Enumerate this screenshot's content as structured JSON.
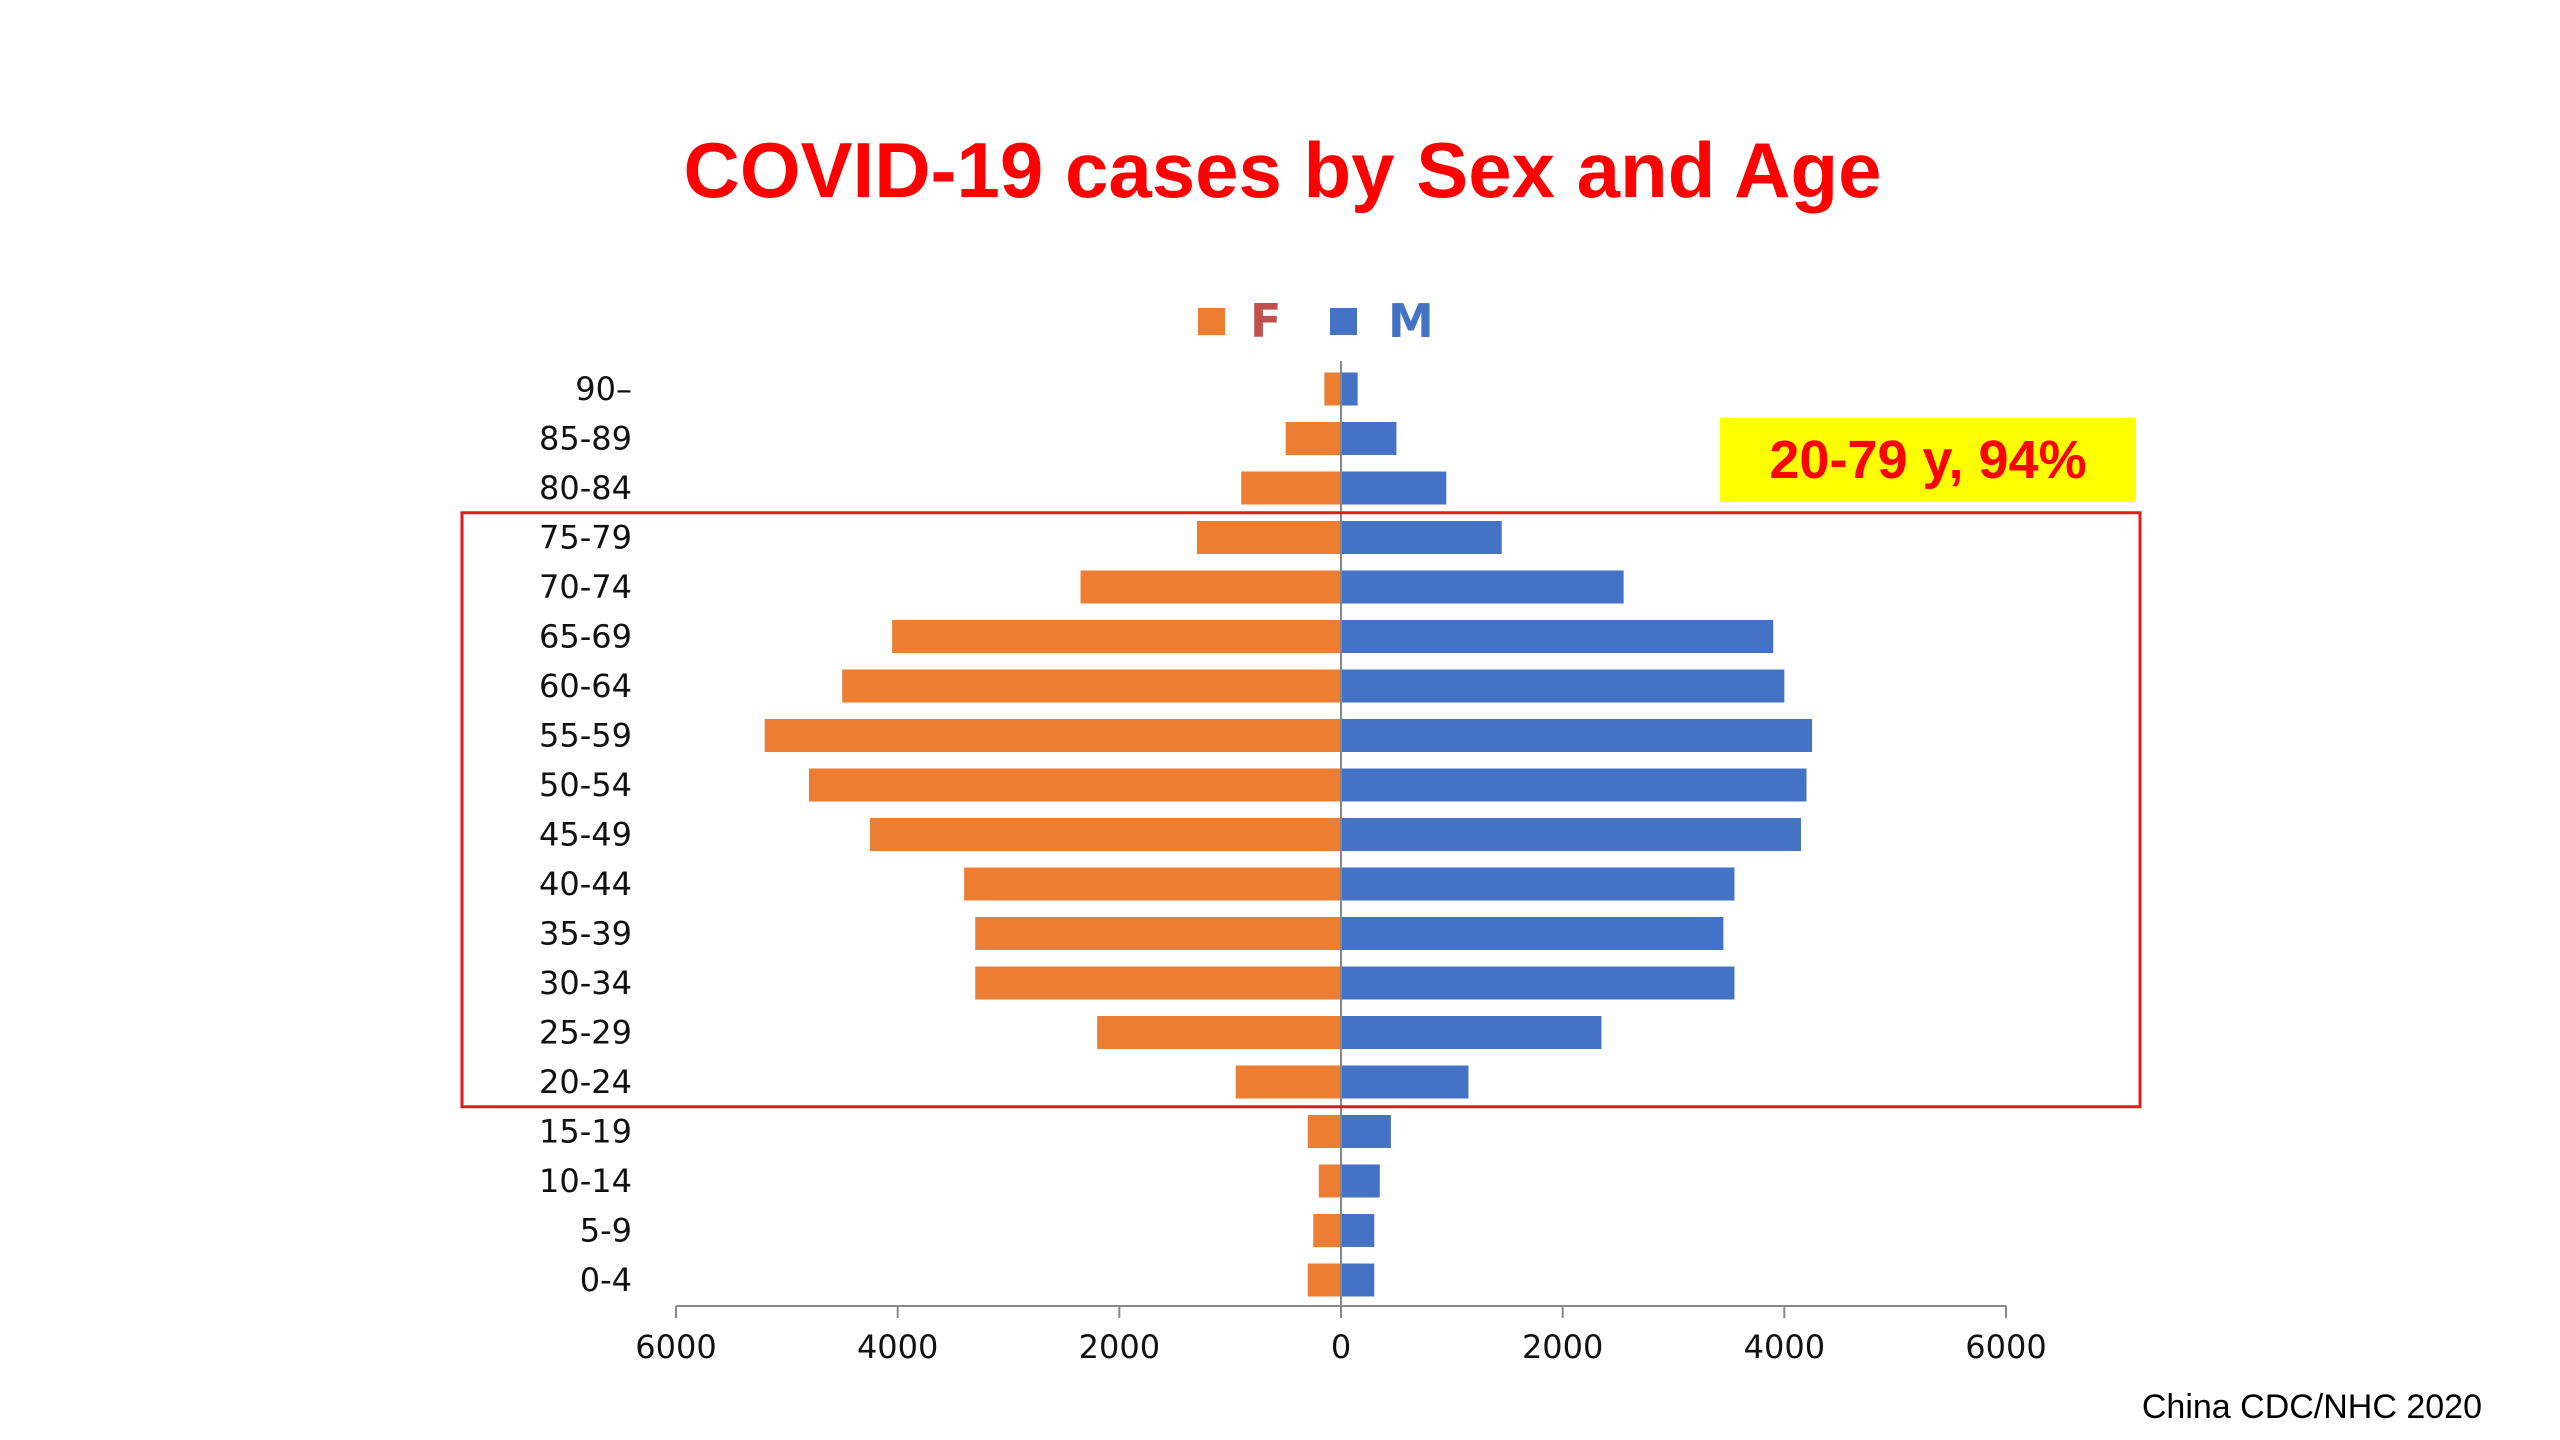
{
  "title": "COVID-19 cases by Sex and Age",
  "source": "China CDC/NHC  2020",
  "callout": "20-79 y, 94%",
  "colors": {
    "female": "#ed7d31",
    "male": "#4472c4",
    "female_label": "#c0504d",
    "highlight_box": "#e41a1c",
    "title": "#ff0000"
  },
  "chart_data": {
    "type": "bar",
    "orientation": "horizontal-population-pyramid",
    "categories": [
      "90–",
      "85-89",
      "80-84",
      "75-79",
      "70-74",
      "65-69",
      "60-64",
      "55-59",
      "50-54",
      "45-49",
      "40-44",
      "35-39",
      "30-34",
      "25-29",
      "20-24",
      "15-19",
      "10-14",
      "5-9",
      "0-4"
    ],
    "series": [
      {
        "name": "F",
        "values": [
          150,
          500,
          900,
          1300,
          2350,
          4050,
          4500,
          5200,
          4800,
          4250,
          3400,
          3300,
          3300,
          2200,
          950,
          300,
          200,
          250,
          300
        ]
      },
      {
        "name": "M",
        "values": [
          150,
          500,
          950,
          1450,
          2550,
          3900,
          4000,
          4250,
          4200,
          4150,
          3550,
          3450,
          3550,
          2350,
          1150,
          450,
          350,
          300,
          300
        ]
      }
    ],
    "xticks": [
      "6000",
      "4000",
      "2000",
      "0",
      "2000",
      "4000",
      "6000"
    ],
    "xlim": [
      -6000,
      6000
    ],
    "highlight_range": [
      "75-79",
      "20-24"
    ],
    "legend_position": "top-center"
  }
}
